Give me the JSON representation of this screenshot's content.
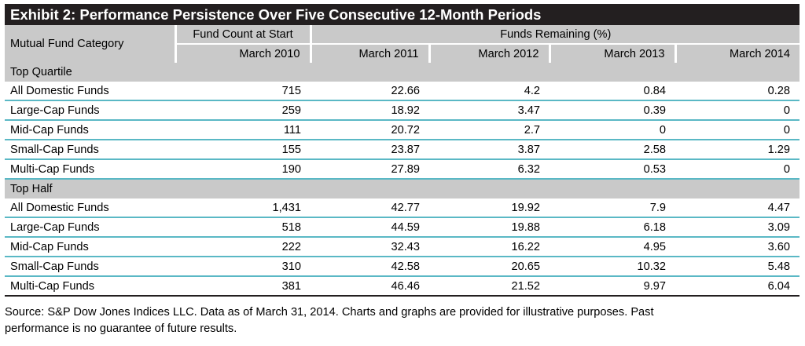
{
  "title": "Exhibit 2: Performance Persistence Over Five Consecutive 12-Month Periods",
  "header": {
    "category_label": "Mutual Fund Category",
    "fund_count_label": "Fund Count at Start",
    "remaining_label": "Funds Remaining (%)",
    "columns": [
      "March 2010",
      "March 2011",
      "March 2012",
      "March 2013",
      "March 2014"
    ]
  },
  "sections": [
    {
      "label": "Top Quartile",
      "rows": [
        {
          "name": "All Domestic Funds",
          "values": [
            "715",
            "22.66",
            "4.2",
            "0.84",
            "0.28"
          ]
        },
        {
          "name": "Large-Cap Funds",
          "values": [
            "259",
            "18.92",
            "3.47",
            "0.39",
            "0"
          ]
        },
        {
          "name": "Mid-Cap Funds",
          "values": [
            "111",
            "20.72",
            "2.7",
            "0",
            "0"
          ]
        },
        {
          "name": "Small-Cap Funds",
          "values": [
            "155",
            "23.87",
            "3.87",
            "2.58",
            "1.29"
          ]
        },
        {
          "name": "Multi-Cap Funds",
          "values": [
            "190",
            "27.89",
            "6.32",
            "0.53",
            "0"
          ]
        }
      ]
    },
    {
      "label": "Top Half",
      "rows": [
        {
          "name": "All Domestic Funds",
          "values": [
            "1,431",
            "42.77",
            "19.92",
            "7.9",
            "4.47"
          ]
        },
        {
          "name": "Large-Cap Funds",
          "values": [
            "518",
            "44.59",
            "19.88",
            "6.18",
            "3.09"
          ]
        },
        {
          "name": "Mid-Cap Funds",
          "values": [
            "222",
            "32.43",
            "16.22",
            "4.95",
            "3.60"
          ]
        },
        {
          "name": "Small-Cap Funds",
          "values": [
            "310",
            "42.58",
            "20.65",
            "10.32",
            "5.48"
          ]
        },
        {
          "name": "Multi-Cap Funds",
          "values": [
            "381",
            "46.46",
            "21.52",
            "9.97",
            "6.04"
          ]
        }
      ]
    }
  ],
  "source": {
    "line1": "Source: S&P Dow Jones Indices LLC.  Data as of March 31, 2014.  Charts and graphs are provided for illustrative purposes.  Past",
    "line2": "performance is no guarantee of future results."
  },
  "colors": {
    "title_bar": "#231f20",
    "header_gray": "#c9c9c9",
    "row_rule": "#5ab8c5"
  }
}
